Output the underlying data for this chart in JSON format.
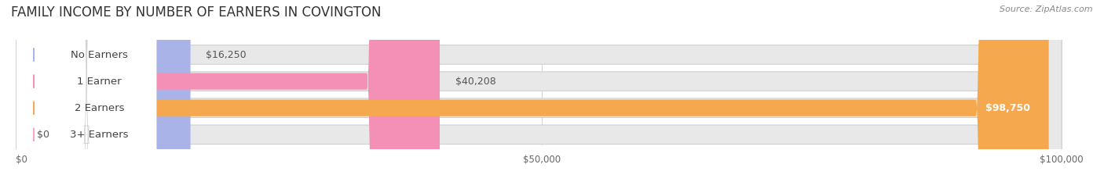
{
  "title": "FAMILY INCOME BY NUMBER OF EARNERS IN COVINGTON",
  "source": "Source: ZipAtlas.com",
  "categories": [
    "No Earners",
    "1 Earner",
    "2 Earners",
    "3+ Earners"
  ],
  "values": [
    16250,
    40208,
    98750,
    0
  ],
  "bar_colors": [
    "#aab3e8",
    "#f490b5",
    "#f5a84e",
    "#f5a8b8"
  ],
  "max_value": 100000,
  "value_labels": [
    "$16,250",
    "$40,208",
    "$98,750",
    "$0"
  ],
  "xtick_labels": [
    "$0",
    "$50,000",
    "$100,000"
  ],
  "xtick_values": [
    0,
    50000,
    100000
  ],
  "bar_track_color": "#e8e8e8",
  "track_border_color": "#d0d0d0",
  "background_color": "#ffffff",
  "title_fontsize": 12,
  "label_fontsize": 9.5,
  "value_fontsize": 9
}
